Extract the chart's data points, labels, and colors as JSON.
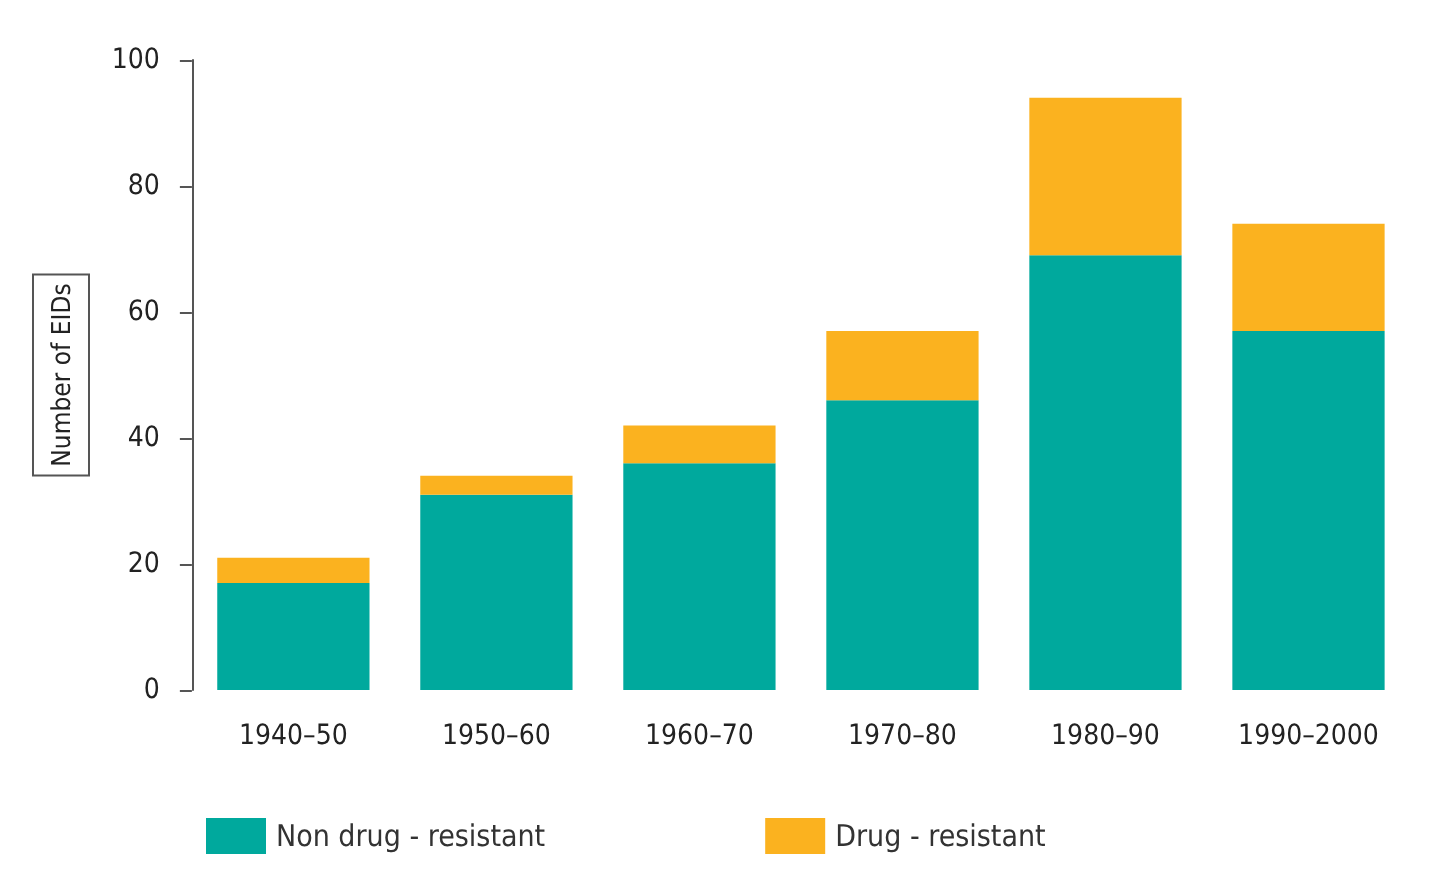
{
  "chart_data": {
    "type": "bar",
    "stacked": true,
    "ylabel": "Number of EIDs",
    "categories": [
      "1940–50",
      "1950–60",
      "1960–70",
      "1970–80",
      "1980–90",
      "1990–2000"
    ],
    "series": [
      {
        "name": "Non drug - resistant",
        "color": "#00a99d",
        "values": [
          17,
          31,
          36,
          46,
          69,
          57
        ]
      },
      {
        "name": "Drug - resistant",
        "color": "#fbb21f",
        "values": [
          4,
          3,
          6,
          11,
          25,
          17
        ]
      }
    ],
    "ylim": [
      0,
      100
    ],
    "yticks": [
      0,
      20,
      40,
      60,
      80,
      100
    ],
    "grid": false,
    "legend": "bottom"
  }
}
